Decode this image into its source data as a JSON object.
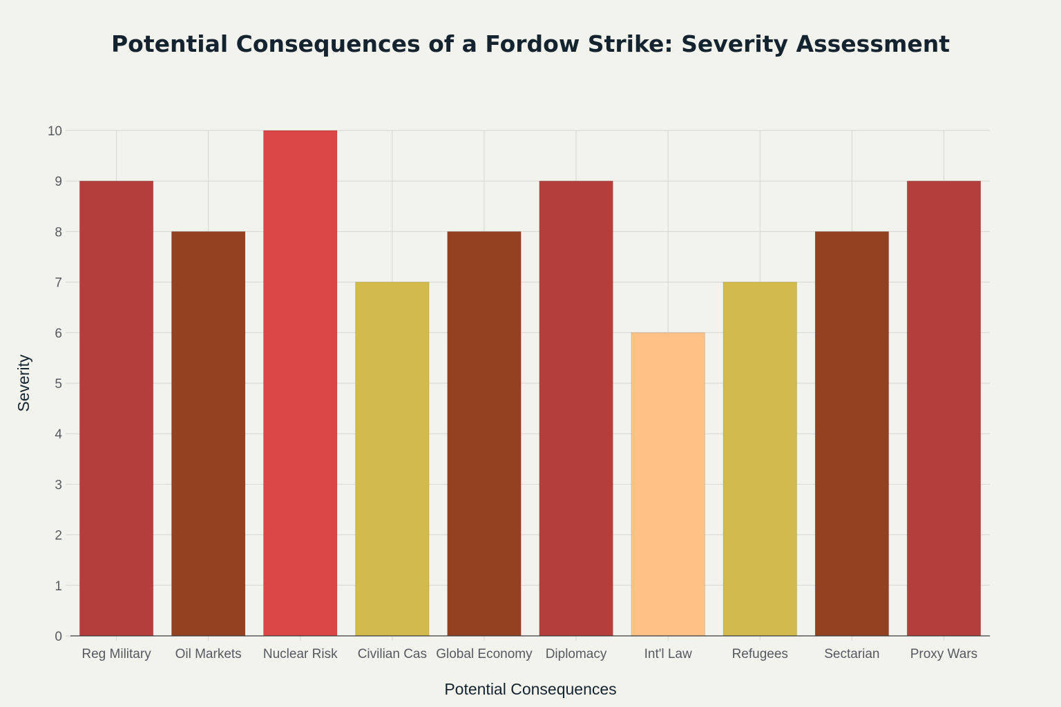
{
  "chart_data": {
    "type": "bar",
    "title": "Potential Consequences of a Fordow Strike: Severity Assessment",
    "xlabel": "Potential Consequences",
    "ylabel": "Severity",
    "ylim": [
      0,
      10
    ],
    "yticks": [
      0,
      1,
      2,
      3,
      4,
      5,
      6,
      7,
      8,
      9,
      10
    ],
    "grid": true,
    "categories": [
      "Reg Military",
      "Oil Markets",
      "Nuclear Risk",
      "Civilian Cas",
      "Global Economy",
      "Diplomacy",
      "Int'l Law",
      "Refugees",
      "Sectarian",
      "Proxy Wars"
    ],
    "values": [
      9,
      8,
      10,
      7,
      8,
      9,
      6,
      7,
      8,
      9
    ],
    "colors": [
      "#b33e3b",
      "#944122",
      "#da4646",
      "#d2ba4c",
      "#944122",
      "#b33e3b",
      "#ffc186",
      "#d2ba4c",
      "#944122",
      "#b33e3b"
    ]
  }
}
